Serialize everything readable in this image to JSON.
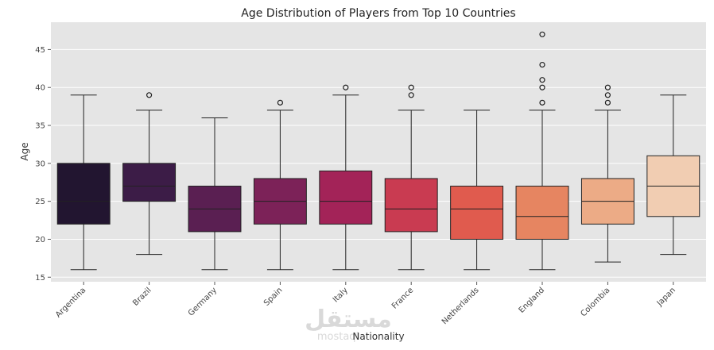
{
  "watermark": {
    "arabic": "مستقل",
    "latin": "mostaql"
  },
  "chart_data": {
    "type": "box",
    "title": "Age Distribution of Players from Top 10 Countries",
    "xlabel": "Nationality",
    "ylabel": "Age",
    "ylim": [
      14.4,
      48.6
    ],
    "yticks": [
      15,
      20,
      25,
      30,
      35,
      40,
      45
    ],
    "grid": true,
    "background": "#e5e5e5",
    "categories": [
      "Argentina",
      "Brazil",
      "Germany",
      "Spain",
      "Italy",
      "France",
      "Netherlands",
      "England",
      "Colombia",
      "Japan"
    ],
    "boxes": [
      {
        "name": "Argentina",
        "whisker_low": 16,
        "q1": 22,
        "median": 25,
        "q3": 30,
        "whisker_high": 39,
        "outliers": [],
        "color": "#221530"
      },
      {
        "name": "Brazil",
        "whisker_low": 18,
        "q1": 25,
        "median": 27,
        "q3": 30,
        "whisker_high": 37,
        "outliers": [
          39
        ],
        "color": "#3c1c47"
      },
      {
        "name": "Germany",
        "whisker_low": 16,
        "q1": 21,
        "median": 24,
        "q3": 27,
        "whisker_high": 36,
        "outliers": [],
        "color": "#5a1f52"
      },
      {
        "name": "Spain",
        "whisker_low": 16,
        "q1": 22,
        "median": 25,
        "q3": 28,
        "whisker_high": 37,
        "outliers": [
          38
        ],
        "color": "#7c2258"
      },
      {
        "name": "Italy",
        "whisker_low": 16,
        "q1": 22,
        "median": 25,
        "q3": 29,
        "whisker_high": 39,
        "outliers": [
          40
        ],
        "color": "#a32358"
      },
      {
        "name": "France",
        "whisker_low": 16,
        "q1": 21,
        "median": 24,
        "q3": 28,
        "whisker_high": 37,
        "outliers": [
          39,
          40
        ],
        "color": "#c93b51"
      },
      {
        "name": "Netherlands",
        "whisker_low": 16,
        "q1": 20,
        "median": 24,
        "q3": 27,
        "whisker_high": 37,
        "outliers": [],
        "color": "#e05b4e"
      },
      {
        "name": "England",
        "whisker_low": 16,
        "q1": 20,
        "median": 23,
        "q3": 27,
        "whisker_high": 37,
        "outliers": [
          38,
          40,
          41,
          43,
          47
        ],
        "color": "#e68561"
      },
      {
        "name": "Colombia",
        "whisker_low": 17,
        "q1": 22,
        "median": 25,
        "q3": 28,
        "whisker_high": 37,
        "outliers": [
          38,
          39,
          40
        ],
        "color": "#ecab86"
      },
      {
        "name": "Japan",
        "whisker_low": 18,
        "q1": 23,
        "median": 27,
        "q3": 31,
        "whisker_high": 39,
        "outliers": [],
        "color": "#f1cdb2"
      }
    ]
  }
}
